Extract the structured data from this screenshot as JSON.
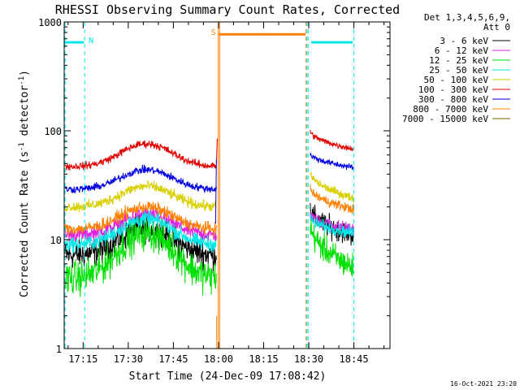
{
  "chart_data": {
    "type": "line",
    "title": "RHESSI Observing Summary Count Rates, Corrected",
    "xlabel": "Start Time (24-Dec-09 17:08:42)",
    "ylabel_main": "Corrected Count Rate (s",
    "ylabel_sup1": "-1",
    "ylabel_mid": " detector",
    "ylabel_sup2": "-1",
    "ylabel_end": ")",
    "yscale": "log",
    "ylim": [
      1,
      1000
    ],
    "xlim_minutes": [
      1028.7,
      1137.0
    ],
    "x_ticks": [
      {
        "label": "17:15",
        "t": 1035
      },
      {
        "label": "17:30",
        "t": 1050
      },
      {
        "label": "17:45",
        "t": 1065
      },
      {
        "label": "18:00",
        "t": 1080
      },
      {
        "label": "18:15",
        "t": 1095
      },
      {
        "label": "18:30",
        "t": 1110
      },
      {
        "label": "18:45",
        "t": 1125
      }
    ],
    "y_ticks": [
      {
        "label": "1",
        "v": 1
      },
      {
        "label": "10",
        "v": 10
      },
      {
        "label": "100",
        "v": 100
      },
      {
        "label": "1000",
        "v": 1000
      }
    ],
    "legend_header": [
      "Det 1,3,4,5,6,9,",
      "Att 0"
    ],
    "series": [
      {
        "name": "3 - 6 keV",
        "color": "#000000",
        "seg1": {
          "base": 7.2,
          "peak": 12.8,
          "noise": 0.09
        },
        "seg2": {
          "start": 19,
          "end": 11
        }
      },
      {
        "name": "6 - 12 keV",
        "color": "#e020e0",
        "seg1": {
          "base": 11.0,
          "peak": 17.0,
          "noise": 0.05
        },
        "seg2": {
          "start": 17,
          "end": 12.5
        }
      },
      {
        "name": "12 - 25 keV",
        "color": "#00e000",
        "seg1": {
          "base": 4.4,
          "peak": 11.5,
          "noise": 0.11
        },
        "seg2": {
          "start": 14,
          "end": 5.5
        }
      },
      {
        "name": "25 - 50 keV",
        "color": "#00e8e8",
        "seg1": {
          "base": 9.0,
          "peak": 15.5,
          "noise": 0.05
        },
        "seg2": {
          "start": 16,
          "end": 11.5
        }
      },
      {
        "name": "50 - 100 keV",
        "color": "#d8d000",
        "seg1": {
          "base": 20,
          "peak": 31,
          "noise": 0.035
        },
        "seg2": {
          "start": 42,
          "end": 24
        }
      },
      {
        "name": "100 - 300 keV",
        "color": "#e00000",
        "seg1": {
          "base": 47,
          "peak": 76,
          "noise": 0.025
        },
        "seg2": {
          "start": 100,
          "end": 68
        }
      },
      {
        "name": "300 - 800 keV",
        "color": "#0000e0",
        "seg1": {
          "base": 29,
          "peak": 44,
          "noise": 0.025
        },
        "seg2": {
          "start": 62,
          "end": 46
        }
      },
      {
        "name": "800 - 7000 keV",
        "color": "#ff8000",
        "seg1": {
          "base": 12.5,
          "peak": 20,
          "noise": 0.04
        },
        "seg2": {
          "start": 30,
          "end": 19
        }
      },
      {
        "name": "7000 - 15000 keV",
        "color": "#806000",
        "seg1": null,
        "seg2": null
      }
    ],
    "segments": {
      "seg1": [
        1029,
        1079.3
      ],
      "seg2": [
        1110.5,
        1125.0
      ]
    },
    "spike_value": 85,
    "night_bars": [
      {
        "label": "N",
        "color": "#00e8e8",
        "level": 650,
        "from": 1028.7,
        "to": 1035.3,
        "lines": [
          1029.0,
          1035.5
        ]
      },
      {
        "label": "",
        "color": "#00e8e8",
        "level": 650,
        "from": 1110.8,
        "to": 1124.6,
        "lines": [
          1109.4,
          1109.8,
          1125.0
        ]
      }
    ],
    "saa_bar": {
      "label": "S",
      "color": "#ff8000",
      "level": 770,
      "from": 1080.1,
      "to": 1108.9,
      "lines": [
        1079.9,
        1080.4,
        1109.1
      ]
    },
    "attenuator_marker": {
      "color": "#ff8000",
      "t": 1079.4,
      "from": 1,
      "to": 2
    }
  },
  "stamp": "16-Oct-2021 23:20"
}
